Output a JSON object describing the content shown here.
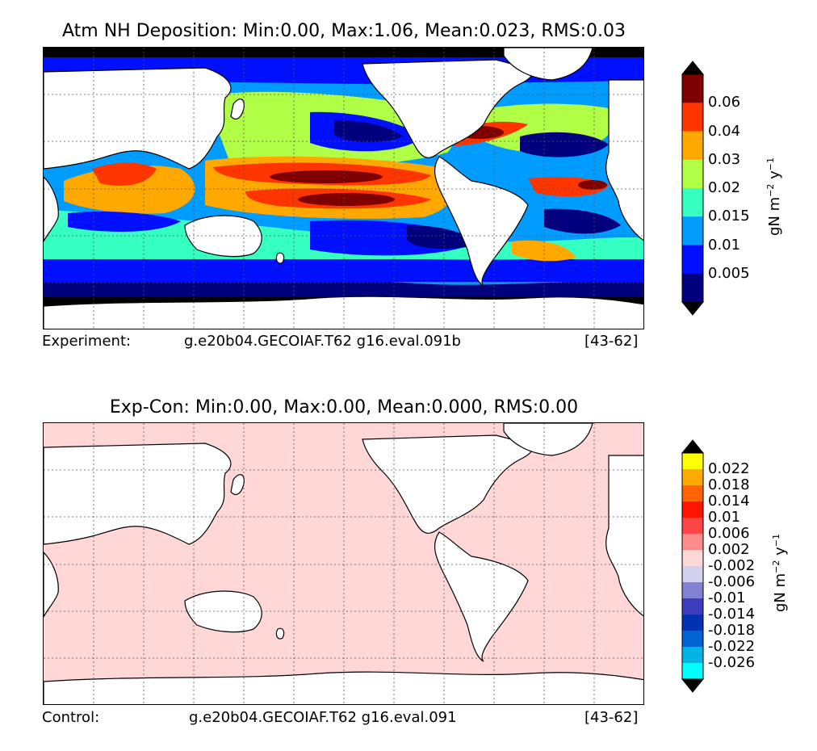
{
  "panels": [
    {
      "title": "Atm NH Deposition: Min:0.00, Max:1.06, Mean:0.023, RMS:0.03",
      "footer_left": "Experiment:",
      "footer_case": "g.e20b04.GECOIAF.T62 g16.eval.091b",
      "footer_years": "[43-62]",
      "colorbar": {
        "unit": "gN m",
        "unit_exp1": "−2",
        "unit_mid": " y",
        "unit_exp2": "−1",
        "tick_labels": [
          "0.005",
          "0.01",
          "0.015",
          "0.02",
          "0.03",
          "0.04",
          "0.06"
        ],
        "colors": [
          "#00007f",
          "#0010ff",
          "#009cff",
          "#36ffc2",
          "#b0ff46",
          "#ffa900",
          "#ff3500",
          "#7f0000"
        ],
        "extend_low_color": "#000000",
        "extend_high_color": "#000000"
      }
    },
    {
      "title": "Exp-Con: Min:0.00, Max:0.00, Mean:0.000, RMS:0.00",
      "footer_left": "Control:",
      "footer_case": "g.e20b04.GECOIAF.T62 g16.eval.091",
      "footer_years": "[43-62]",
      "colorbar": {
        "unit": "gN m",
        "unit_exp1": "−2",
        "unit_mid": " y",
        "unit_exp2": "−1",
        "tick_labels": [
          "-0.026",
          "-0.022",
          "-0.018",
          "-0.014",
          "-0.01",
          "-0.006",
          "-0.002",
          "0.002",
          "0.006",
          "0.01",
          "0.014",
          "0.018",
          "0.022"
        ],
        "colors": [
          "#00ffff",
          "#00b4e6",
          "#0064d2",
          "#0032b4",
          "#3c3cbe",
          "#8282d2",
          "#d2d2f0",
          "#ffd7d7",
          "#ff8c8c",
          "#ff4646",
          "#ff1400",
          "#ff6400",
          "#ffaa00",
          "#ffff00"
        ],
        "extend_low_color": "#000000",
        "extend_high_color": "#000000"
      }
    }
  ],
  "map_colors": {
    "land": "#ffffff",
    "coastline": "#000000",
    "grid": "#555555",
    "difference_field": "#ffd7d7"
  }
}
